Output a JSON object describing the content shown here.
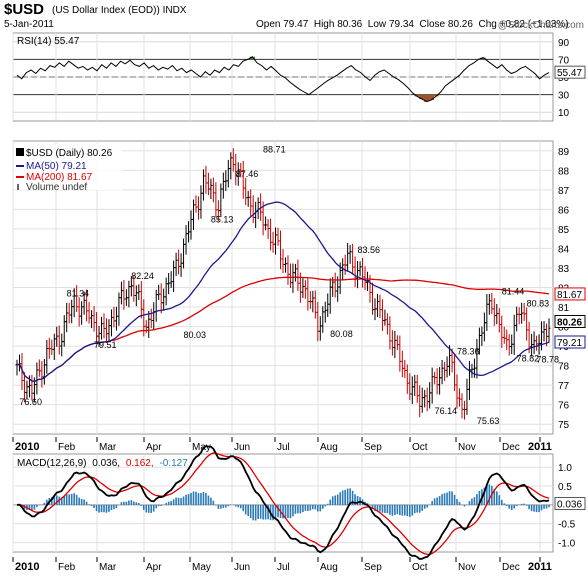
{
  "header": {
    "symbol": "$USD",
    "description": "(US Dollar Index (EOD)) INDX",
    "date": "5-Jan-2011",
    "open_label": "Open",
    "open": "79.47",
    "high_label": "High",
    "high": "80.36",
    "low_label": "Low",
    "low": "79.34",
    "close_label": "Close",
    "close": "80.26",
    "chg_label": "Chg",
    "chg": "+0.82 (+1.03%)",
    "watermark": "@StockCharts.com"
  },
  "rsi": {
    "legend": "RSI(14) 55.47",
    "ticks": [
      "90",
      "70",
      "50",
      "30",
      "10"
    ],
    "tick_values": [
      90,
      70,
      50,
      30,
      10
    ],
    "ylim": [
      0,
      100
    ],
    "last_value": 55.47,
    "last_label": "55.47",
    "upper": 70,
    "lower": 30,
    "values": [
      52,
      48,
      55,
      58,
      54,
      60,
      57,
      63,
      61,
      66,
      62,
      68,
      64,
      60,
      62,
      58,
      61,
      57,
      64,
      60,
      66,
      62,
      68,
      65,
      69,
      64,
      62,
      66,
      60,
      63,
      58,
      61,
      59,
      63,
      57,
      60,
      55,
      58,
      54,
      50,
      56,
      52,
      58,
      55,
      61,
      58,
      64,
      62,
      68,
      70,
      73,
      66,
      63,
      58,
      62,
      57,
      52,
      49,
      44,
      40,
      36,
      33,
      30,
      34,
      38,
      42,
      46,
      49,
      52,
      56,
      60,
      63,
      58,
      55,
      50,
      46,
      52,
      56,
      58,
      54,
      50,
      47,
      43,
      38,
      32,
      28,
      25,
      22,
      24,
      28,
      33,
      40,
      44,
      48,
      52,
      58,
      63,
      66,
      70,
      72,
      68,
      64,
      60,
      64,
      58,
      54,
      56,
      60,
      62,
      58,
      54,
      48,
      52,
      55
    ]
  },
  "price": {
    "legend_title": "$USD (Daily) 80.26",
    "legend_ma50": "MA(50) 79.21",
    "legend_ma200": "MA(200) 81.67",
    "legend_volume": "Volume undef",
    "ticks": [
      "89",
      "88",
      "87",
      "86",
      "85",
      "84",
      "83",
      "82",
      "81",
      "80",
      "79",
      "78",
      "77",
      "76",
      "75"
    ],
    "tick_values": [
      89,
      88,
      87,
      86,
      85,
      84,
      83,
      82,
      81,
      80,
      79,
      78,
      77,
      76,
      75
    ],
    "ylim": [
      74.5,
      89.5
    ],
    "price_tag": "80.26",
    "price_tag_value": 80.26,
    "ma200_tag": "81.67",
    "ma200_tag_value": 81.67,
    "ma50_tag": "79.21",
    "ma50_tag_value": 79.21,
    "colors": {
      "up": "#000000",
      "down": "#cc0000",
      "ma50": "#1a1a8c",
      "ma200": "#dd0000",
      "tag_price": "#000000",
      "tag_ma50": "#1a1a8c",
      "tag_ma200": "#dd0000"
    }
  },
  "macd": {
    "legend_prefix": "MACD(12,26,9)",
    "legend_macd": "0.036,",
    "legend_signal": "0.162,",
    "legend_hist": "-0.127",
    "ticks": [
      "1.0",
      "0.5",
      "0.0",
      "-0.5",
      "-1.0"
    ],
    "tick_values": [
      1.0,
      0.5,
      0.0,
      -0.5,
      -1.0
    ],
    "ylim": [
      -1.25,
      1.35
    ],
    "tag": "0.036",
    "tag_value": 0.036,
    "colors": {
      "macd": "#000000",
      "signal": "#dd0000",
      "hist": "#2a7ab8"
    }
  },
  "x_axis": {
    "labels": [
      "2010",
      "Feb",
      "Mar",
      "Apr",
      "May",
      "Jun",
      "Jul",
      "Aug",
      "Sep",
      "Oct",
      "Nov",
      "Dec",
      "2011"
    ],
    "bold": [
      true,
      false,
      false,
      false,
      false,
      false,
      false,
      false,
      false,
      false,
      false,
      false,
      true
    ]
  },
  "chart_data": {
    "type": "line",
    "title": "$USD (US Dollar Index (EOD)) INDX",
    "series_kind": "daily OHLC bars with MA(50), MA(200), RSI(14), MACD(12,26,9)",
    "date_range": [
      "2010-01",
      "2011-01-05"
    ],
    "last": {
      "open": 79.47,
      "high": 80.36,
      "low": 79.34,
      "close": 80.26,
      "change": 0.82,
      "change_pct": 1.03
    },
    "price_points": [
      {
        "x": "2010-01",
        "y": 77.8
      },
      {
        "x": "2010-01",
        "y": 76.6
      },
      {
        "x": "2010-01",
        "y": 78.5
      },
      {
        "x": "2010-02",
        "y": 79.5
      },
      {
        "x": "2010-02",
        "y": 81.34
      },
      {
        "x": "2010-02",
        "y": 80.6
      },
      {
        "x": "2010-03",
        "y": 79.51
      },
      {
        "x": "2010-03",
        "y": 81.0
      },
      {
        "x": "2010-03",
        "y": 82.24
      },
      {
        "x": "2010-04",
        "y": 80.03
      },
      {
        "x": "2010-04",
        "y": 81.6
      },
      {
        "x": "2010-04",
        "y": 82.8
      },
      {
        "x": "2010-05",
        "y": 85.13
      },
      {
        "x": "2010-05",
        "y": 87.46
      },
      {
        "x": "2010-05",
        "y": 86.3
      },
      {
        "x": "2010-06",
        "y": 88.71
      },
      {
        "x": "2010-06",
        "y": 86.5
      },
      {
        "x": "2010-06",
        "y": 85.6
      },
      {
        "x": "2010-07",
        "y": 84.2
      },
      {
        "x": "2010-07",
        "y": 82.6
      },
      {
        "x": "2010-07",
        "y": 82.0
      },
      {
        "x": "2010-08",
        "y": 80.08
      },
      {
        "x": "2010-08",
        "y": 82.0
      },
      {
        "x": "2010-08",
        "y": 83.56
      },
      {
        "x": "2010-09",
        "y": 82.6
      },
      {
        "x": "2010-09",
        "y": 81.0
      },
      {
        "x": "2010-09",
        "y": 79.6
      },
      {
        "x": "2010-10",
        "y": 77.5
      },
      {
        "x": "2010-10",
        "y": 76.14
      },
      {
        "x": "2010-10",
        "y": 77.0
      },
      {
        "x": "2010-11",
        "y": 78.36
      },
      {
        "x": "2010-11",
        "y": 75.63
      },
      {
        "x": "2010-11",
        "y": 79.0
      },
      {
        "x": "2010-12",
        "y": 81.44
      },
      {
        "x": "2010-12",
        "y": 78.82
      },
      {
        "x": "2010-12",
        "y": 80.83
      },
      {
        "x": "2010-12",
        "y": 78.78
      },
      {
        "x": "2011-01",
        "y": 80.26
      }
    ],
    "annotations": [
      "76.60",
      "81.34",
      "79.51",
      "82.24",
      "80.03",
      "85.13",
      "87.46",
      "88.71",
      "80.08",
      "83.56",
      "76.14",
      "78.36",
      "75.63",
      "81.44",
      "78.82",
      "80.83",
      "78.78"
    ],
    "ma50_last": 79.21,
    "ma200_last": 81.67,
    "rsi_last": 55.47,
    "macd_last": {
      "macd": 0.036,
      "signal": 0.162,
      "histogram": -0.127
    }
  }
}
